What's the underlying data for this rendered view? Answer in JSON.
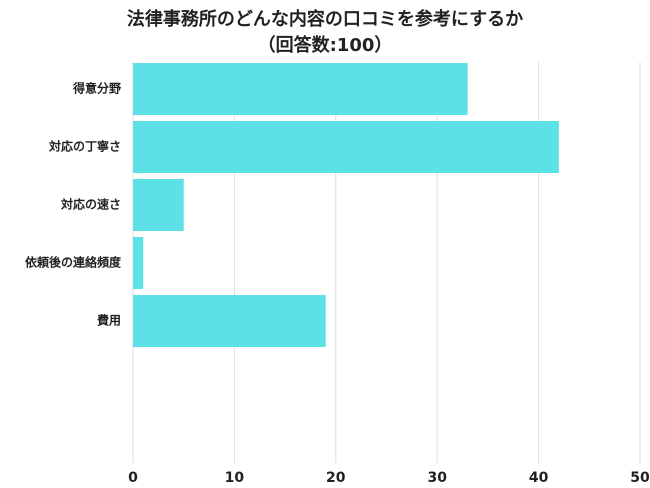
{
  "chart_data": {
    "type": "bar",
    "orientation": "horizontal",
    "title": "法律事務所のどんな内容の口コミを参考にするか",
    "subtitle": "（回答数:100）",
    "categories": [
      "得意分野",
      "対応の丁寧さ",
      "対応の速さ",
      "依頼後の連絡頻度",
      "費用"
    ],
    "values": [
      33,
      42,
      5,
      1,
      19
    ],
    "color": "#5ce1e6",
    "xlim": [
      0,
      50
    ],
    "xticks": [
      0,
      10,
      20,
      30,
      40,
      50
    ],
    "grid": true
  }
}
